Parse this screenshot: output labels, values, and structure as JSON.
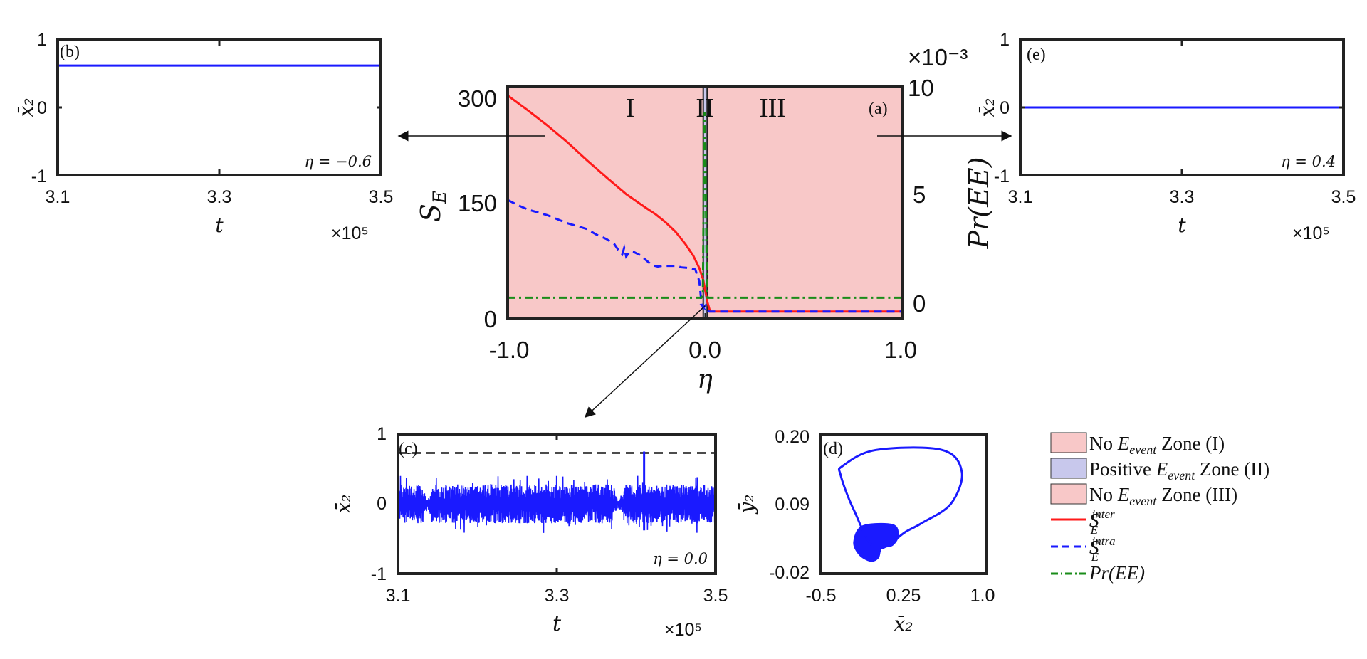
{
  "chart_data": [
    {
      "id": "a",
      "panel_label": "(a)",
      "type": "line",
      "xlabel": "η",
      "ylabel_left": "S_E",
      "ylabel_right": "Pr(EE)",
      "right_axis_exponent": "×10⁻³",
      "xlim": [
        -1.0,
        1.0
      ],
      "ylim_left": [
        -10,
        310
      ],
      "ylim_right": [
        -1,
        10
      ],
      "x_ticks": [
        "-1.0",
        "0.0",
        "1.0"
      ],
      "y_ticks_left": [
        "0",
        "150",
        "300"
      ],
      "y_ticks_right": [
        "0",
        "5",
        "10"
      ],
      "zones": [
        {
          "label": "I",
          "from": -1.0,
          "to": -0.01,
          "color": "#f8c8c8"
        },
        {
          "label": "II",
          "from": -0.01,
          "to": 0.01,
          "color": "#c8c8ec"
        },
        {
          "label": "III",
          "from": 0.01,
          "to": 1.0,
          "color": "#f8c8c8"
        }
      ],
      "series": [
        {
          "name": "S_E^inter",
          "style": "solid",
          "color": "#ff1a1a",
          "points": [
            [
              -1.0,
              298
            ],
            [
              -0.9,
              278
            ],
            [
              -0.8,
              257
            ],
            [
              -0.7,
              234
            ],
            [
              -0.6,
              209
            ],
            [
              -0.5,
              185
            ],
            [
              -0.4,
              162
            ],
            [
              -0.3,
              143
            ],
            [
              -0.25,
              134
            ],
            [
              -0.2,
              123
            ],
            [
              -0.15,
              110
            ],
            [
              -0.1,
              93
            ],
            [
              -0.06,
              77
            ],
            [
              -0.03,
              60
            ],
            [
              -0.01,
              44
            ],
            [
              0.01,
              14
            ],
            [
              0.025,
              0
            ],
            [
              0.05,
              0
            ],
            [
              1.0,
              0
            ]
          ]
        },
        {
          "name": "S_E^intra",
          "style": "dashed",
          "color": "#1a1aff",
          "points": [
            [
              -1.0,
              154
            ],
            [
              -0.95,
              147
            ],
            [
              -0.9,
              141
            ],
            [
              -0.8,
              133
            ],
            [
              -0.7,
              122
            ],
            [
              -0.6,
              114
            ],
            [
              -0.55,
              106
            ],
            [
              -0.5,
              100
            ],
            [
              -0.46,
              93
            ],
            [
              -0.44,
              85
            ],
            [
              -0.42,
              79
            ],
            [
              -0.41,
              88
            ],
            [
              -0.4,
              76
            ],
            [
              -0.38,
              83
            ],
            [
              -0.36,
              82
            ],
            [
              -0.33,
              78
            ],
            [
              -0.3,
              71
            ],
            [
              -0.27,
              64
            ],
            [
              -0.24,
              62
            ],
            [
              -0.22,
              63
            ],
            [
              -0.18,
              63
            ],
            [
              -0.15,
              63
            ],
            [
              -0.12,
              61
            ],
            [
              -0.08,
              60
            ],
            [
              -0.05,
              58
            ],
            [
              -0.03,
              42
            ],
            [
              -0.02,
              14
            ],
            [
              -0.01,
              5
            ],
            [
              0.0,
              8
            ],
            [
              0.01,
              2
            ],
            [
              0.02,
              0
            ],
            [
              0.05,
              0
            ],
            [
              1.0,
              0
            ]
          ]
        },
        {
          "name": "Pr(EE)",
          "style": "dash-dot",
          "color": "#1a8c1a",
          "axis": "right",
          "points": [
            [
              -1.0,
              0.0
            ],
            [
              -0.02,
              0.0
            ],
            [
              -0.012,
              0.1
            ],
            [
              -0.006,
              7.0
            ],
            [
              -0.003,
              8.8
            ],
            [
              0.0,
              7.6
            ],
            [
              0.004,
              4.2
            ],
            [
              0.008,
              1.0
            ],
            [
              0.012,
              0.0
            ],
            [
              1.0,
              0.0
            ]
          ]
        }
      ],
      "marker": {
        "symbol": "×",
        "x": -0.01,
        "y": 6
      }
    },
    {
      "id": "b",
      "panel_label": "(b)",
      "type": "line",
      "xlabel": "t",
      "ylabel": "x̄₂",
      "x_exponent": "×10⁵",
      "xlim": [
        3.1,
        3.5
      ],
      "ylim": [
        -1,
        1
      ],
      "x_ticks": [
        "3.1",
        "3.3",
        "3.5"
      ],
      "y_ticks": [
        "1",
        "0",
        "-1"
      ],
      "annotation": "η = −0.6",
      "series": [
        {
          "name": "x̄₂",
          "color": "#1a1aff",
          "constant": 0.62
        }
      ]
    },
    {
      "id": "e",
      "panel_label": "(e)",
      "type": "line",
      "xlabel": "t",
      "ylabel": "x̄₂",
      "x_exponent": "×10⁵",
      "xlim": [
        3.1,
        3.5
      ],
      "ylim": [
        -1,
        1
      ],
      "x_ticks": [
        "3.1",
        "3.3",
        "3.5"
      ],
      "y_ticks": [
        "1",
        "0",
        "-1"
      ],
      "annotation": "η = 0.4",
      "series": [
        {
          "name": "x̄₂",
          "color": "#1a1aff",
          "constant": 0.0
        }
      ]
    },
    {
      "id": "c",
      "panel_label": "(c)",
      "type": "line",
      "xlabel": "t",
      "ylabel": "x̄₂",
      "x_exponent": "×10⁵",
      "xlim": [
        3.1,
        3.5
      ],
      "ylim": [
        -1,
        1
      ],
      "x_ticks": [
        "3.1",
        "3.3",
        "3.5"
      ],
      "y_ticks": [
        "1",
        "0",
        "-1"
      ],
      "annotation": "η = 0.0",
      "threshold": 0.73,
      "extreme_event": {
        "t": 3.41,
        "max": 0.75,
        "min": -0.38
      },
      "quiet_intervals": [
        [
          3.132,
          3.142
        ],
        [
          3.37,
          3.385
        ]
      ],
      "oscillation_amplitude": 0.28,
      "series": [
        {
          "name": "x̄₂",
          "color": "#1a1aff"
        }
      ]
    },
    {
      "id": "d",
      "panel_label": "(d)",
      "type": "line",
      "xlabel": "x̄₂",
      "ylabel": "ȳ₂",
      "xlim": [
        -0.5,
        1.0
      ],
      "ylim": [
        -0.02,
        0.2
      ],
      "x_ticks": [
        "-0.5",
        "0.25",
        "1.0"
      ],
      "y_ticks": [
        "0.20",
        "0.09",
        "-0.02"
      ],
      "outer_loop": [
        [
          0.0,
          0.02
        ],
        [
          -0.2,
          0.08
        ],
        [
          -0.32,
          0.135
        ],
        [
          -0.3,
          0.15
        ],
        [
          0.0,
          0.175
        ],
        [
          0.6,
          0.175
        ],
        [
          0.78,
          0.14
        ],
        [
          0.68,
          0.09
        ],
        [
          0.42,
          0.06
        ],
        [
          0.28,
          0.047
        ]
      ],
      "filled_region": [
        [
          -0.12,
          0.055
        ],
        [
          0.15,
          0.057
        ],
        [
          0.2,
          0.04
        ],
        [
          0.15,
          0.025
        ],
        [
          0.05,
          0.02
        ],
        [
          0.02,
          0.005
        ],
        [
          -0.05,
          0.0
        ],
        [
          -0.15,
          0.01
        ],
        [
          -0.2,
          0.03
        ]
      ],
      "series": [
        {
          "name": "attractor",
          "color": "#1a1aff"
        }
      ]
    }
  ],
  "legend": [
    {
      "kind": "patch",
      "color": "#f8c8c8",
      "text": "No E_event Zone (I)"
    },
    {
      "kind": "patch",
      "color": "#c8c8ec",
      "text": "Positive E_event Zone (II)"
    },
    {
      "kind": "patch",
      "color": "#f8c8c8",
      "text": "No E_event Zone (III)"
    },
    {
      "kind": "line",
      "color": "#ff1a1a",
      "style": "solid",
      "text": "S_E^inter"
    },
    {
      "kind": "line",
      "color": "#1a1aff",
      "style": "dashed",
      "text": "S_E^intra"
    },
    {
      "kind": "line",
      "color": "#1a8c1a",
      "style": "dash-dot",
      "text": "Pr(EE)"
    }
  ]
}
